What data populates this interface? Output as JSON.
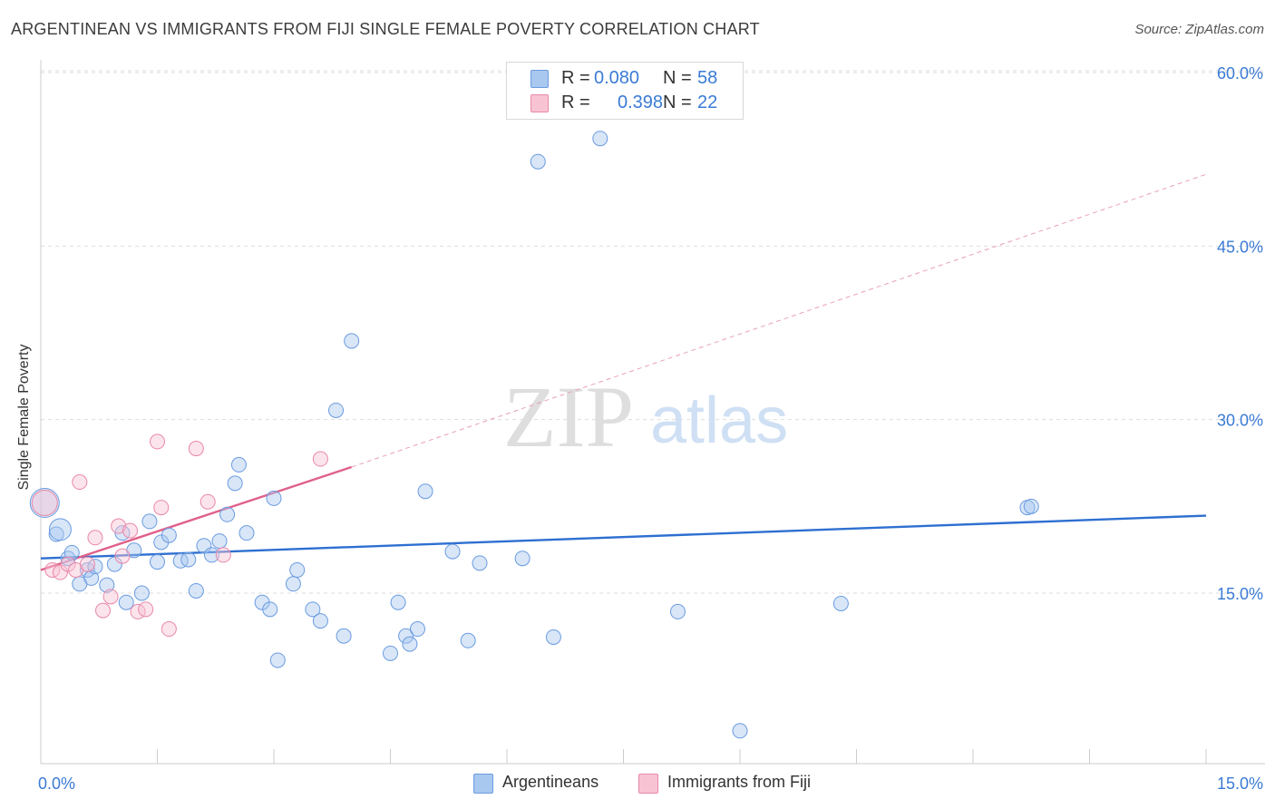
{
  "title": "ARGENTINEAN VS IMMIGRANTS FROM FIJI SINGLE FEMALE POVERTY CORRELATION CHART",
  "source": "Source: ZipAtlas.com",
  "watermark": {
    "zip": "ZIP",
    "atlas": "atlas"
  },
  "legend": {
    "r_label": "R =",
    "n_label": "N =",
    "rows": [
      {
        "r": "0.080",
        "n": "58",
        "color": "#a9c8f0",
        "border": "#6a9be0"
      },
      {
        "r": "0.398",
        "n": "22",
        "color": "#f8c4d4",
        "border": "#e888a8"
      }
    ]
  },
  "bottom_legend": [
    {
      "label": "Argentineans",
      "color": "#a9c8f0",
      "border": "#6a9be0"
    },
    {
      "label": "Immigrants from Fiji",
      "color": "#f8c4d4",
      "border": "#e888a8"
    }
  ],
  "chart_data": {
    "type": "scatter",
    "title": "ARGENTINEAN VS IMMIGRANTS FROM FIJI SINGLE FEMALE POVERTY CORRELATION CHART",
    "xlabel": "",
    "ylabel": "Single Female Poverty",
    "xlim": [
      0,
      15
    ],
    "ylim": [
      0,
      60
    ],
    "x_tick_labels": [
      {
        "value": 0,
        "label": "0.0%"
      },
      {
        "value": 15,
        "label": "15.0%"
      }
    ],
    "y_tick_labels": [
      {
        "value": 15,
        "label": "15.0%"
      },
      {
        "value": 30,
        "label": "30.0%"
      },
      {
        "value": 45,
        "label": "45.0%"
      },
      {
        "value": 60,
        "label": "60.0%"
      }
    ],
    "series": [
      {
        "name": "Argentineans",
        "color": "#a9c8f0",
        "edge": "#6a9be0",
        "trend": {
          "x0": 0,
          "y0": 18.0,
          "x1": 15,
          "y1": 21.7,
          "color": "#2e6fd1"
        },
        "points": [
          [
            0.05,
            22.8
          ],
          [
            0.2,
            20.1
          ],
          [
            0.25,
            20.5
          ],
          [
            0.35,
            18.0
          ],
          [
            0.4,
            18.5
          ],
          [
            0.5,
            15.8
          ],
          [
            0.6,
            17.0
          ],
          [
            0.65,
            16.3
          ],
          [
            0.7,
            17.3
          ],
          [
            0.85,
            15.7
          ],
          [
            0.95,
            17.5
          ],
          [
            1.05,
            20.2
          ],
          [
            1.1,
            14.2
          ],
          [
            1.2,
            18.7
          ],
          [
            1.3,
            15.0
          ],
          [
            1.4,
            21.2
          ],
          [
            1.5,
            17.7
          ],
          [
            1.55,
            19.4
          ],
          [
            1.65,
            20.0
          ],
          [
            1.8,
            17.8
          ],
          [
            1.9,
            17.9
          ],
          [
            2.0,
            15.2
          ],
          [
            2.1,
            19.1
          ],
          [
            2.2,
            18.3
          ],
          [
            2.3,
            19.5
          ],
          [
            2.4,
            21.8
          ],
          [
            2.5,
            24.5
          ],
          [
            2.55,
            26.1
          ],
          [
            2.65,
            20.2
          ],
          [
            2.85,
            14.2
          ],
          [
            2.95,
            13.6
          ],
          [
            3.0,
            23.2
          ],
          [
            3.05,
            9.2
          ],
          [
            3.25,
            15.8
          ],
          [
            3.3,
            17.0
          ],
          [
            3.5,
            13.6
          ],
          [
            3.6,
            12.6
          ],
          [
            3.8,
            30.8
          ],
          [
            3.9,
            11.3
          ],
          [
            4.0,
            36.8
          ],
          [
            4.5,
            9.8
          ],
          [
            4.6,
            14.2
          ],
          [
            4.7,
            11.3
          ],
          [
            4.75,
            10.6
          ],
          [
            4.85,
            11.9
          ],
          [
            4.95,
            23.8
          ],
          [
            5.3,
            18.6
          ],
          [
            5.5,
            10.9
          ],
          [
            5.65,
            17.6
          ],
          [
            6.2,
            18.0
          ],
          [
            6.4,
            52.3
          ],
          [
            6.6,
            11.2
          ],
          [
            7.2,
            54.3
          ],
          [
            8.2,
            13.4
          ],
          [
            9.0,
            3.1
          ],
          [
            10.3,
            14.1
          ],
          [
            12.7,
            22.4
          ],
          [
            12.75,
            22.5
          ]
        ]
      },
      {
        "name": "Immigrants from Fiji",
        "color": "#f8c4d4",
        "edge": "#e888a8",
        "trend": {
          "x0": 0,
          "y0": 17.0,
          "x1": 4.0,
          "y1": 25.9,
          "color": "#e0608a",
          "extend_to": {
            "x": 15,
            "y": 51.2
          }
        },
        "points": [
          [
            0.05,
            22.8
          ],
          [
            0.15,
            17.0
          ],
          [
            0.25,
            16.8
          ],
          [
            0.35,
            17.5
          ],
          [
            0.45,
            17.0
          ],
          [
            0.5,
            24.6
          ],
          [
            0.6,
            17.5
          ],
          [
            0.7,
            19.8
          ],
          [
            0.8,
            13.5
          ],
          [
            0.9,
            14.7
          ],
          [
            1.0,
            20.8
          ],
          [
            1.05,
            18.2
          ],
          [
            1.15,
            20.4
          ],
          [
            1.25,
            13.4
          ],
          [
            1.35,
            13.6
          ],
          [
            1.5,
            28.1
          ],
          [
            1.55,
            22.4
          ],
          [
            1.65,
            11.9
          ],
          [
            2.0,
            27.5
          ],
          [
            2.15,
            22.9
          ],
          [
            2.35,
            18.3
          ],
          [
            3.6,
            26.6
          ]
        ]
      }
    ]
  }
}
